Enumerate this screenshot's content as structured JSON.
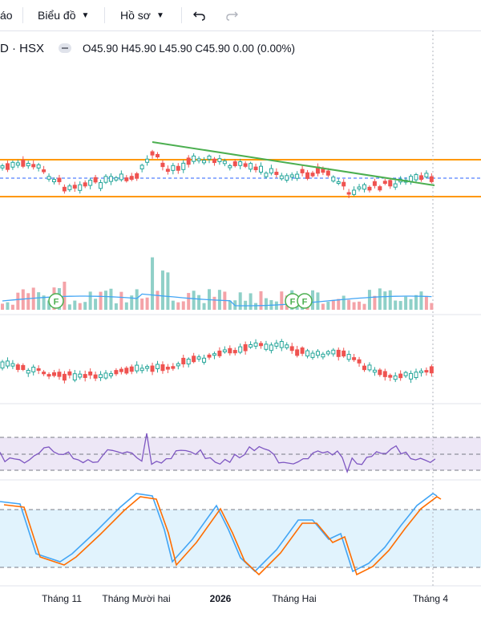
{
  "toolbar": {
    "partial_left": "áo",
    "chart_menu": "Biểu đồ",
    "profile_menu": "Hồ sơ"
  },
  "legend": {
    "symbol": "D · HSX",
    "ohlc": "O45.90 H45.90 L45.90 C45.90 0.00 (0.00%)"
  },
  "x_axis": [
    "Tháng 11",
    "Tháng Mười hai",
    "2026",
    "Tháng Hai",
    "Tháng 4"
  ],
  "events": [
    "F",
    "F",
    "F"
  ],
  "colors": {
    "up": "#26a69a",
    "down": "#ef5350",
    "level_lines": "#ff9800",
    "trend_line": "#4caf50",
    "ma_line": "#42a5f5",
    "rsi_line": "#7e57c2",
    "stoch_k": "#42a5f5",
    "stoch_d": "#ff6d00"
  }
}
